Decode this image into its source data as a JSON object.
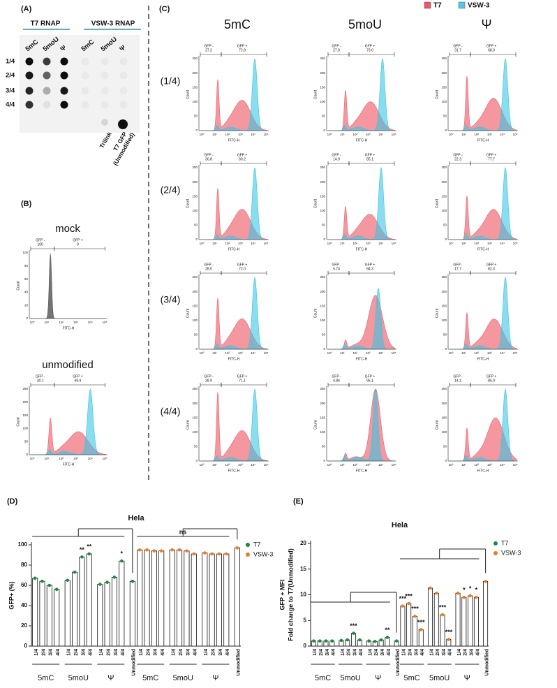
{
  "figure": {
    "A": {
      "label": "(A)",
      "enzymes": [
        "T7 RNAP",
        "VSW-3 RNAP"
      ],
      "modifications": [
        "5mC",
        "5moU",
        "Ψ",
        "5mC",
        "5moU",
        "Ψ"
      ],
      "doses": [
        "1/4",
        "2/4",
        "3/4",
        "4/4"
      ],
      "controls": [
        "Trilink",
        "T7 GFP",
        "(Unmodified)"
      ]
    },
    "B": {
      "label": "(B)",
      "samples": [
        {
          "name": "mock",
          "gfp_neg": "100",
          "gfp_pos": "0"
        },
        {
          "name": "unmodified",
          "gfp_neg": "30.1",
          "gfp_pos": "69.9"
        }
      ]
    },
    "C": {
      "label": "(C)",
      "legend": [
        "T7",
        "VSW-3"
      ],
      "modifications": [
        "5mC",
        "5moU",
        "Ψ"
      ],
      "doses": [
        "(1/4)",
        "(2/4)",
        "(3/4)",
        "(4/4)"
      ],
      "gates": [
        [
          [
            "27.2",
            "72.8"
          ],
          [
            "30.8",
            "69.2"
          ],
          [
            "28.0",
            "72.0"
          ],
          [
            "28.9",
            "71.1"
          ]
        ],
        [
          [
            "27.0",
            "73.0"
          ],
          [
            "14.9",
            "85.1"
          ],
          [
            "5.74",
            "94.3"
          ],
          [
            "4.86",
            "95.1"
          ]
        ],
        [
          [
            "31.7",
            "68.3"
          ],
          [
            "22.3",
            "77.7"
          ],
          [
            "17.7",
            "82.3"
          ],
          [
            "14.1",
            "85.9"
          ]
        ]
      ]
    },
    "flow_axis": {
      "gate_labels": [
        "GFP -",
        "GFP +"
      ],
      "x_label": "FITC-H",
      "y_label": "Count",
      "x_ticks": [
        "10⁰",
        "10¹",
        "10²",
        "10³",
        "10⁴",
        "10⁵"
      ],
      "y_ticks": [
        "0",
        "50",
        "100",
        "150",
        "200",
        "250"
      ],
      "mock_y_ticks": [
        "0",
        "20",
        "40",
        "60",
        "80",
        "100"
      ]
    }
  },
  "chart_data": [
    {
      "type": "bar",
      "label": "(D)",
      "title": "Hela",
      "y_label": [
        "GFP+ (%)"
      ],
      "categories": [
        "1/4",
        "2/4",
        "3/4",
        "4/4",
        "1/4",
        "2/4",
        "3/4",
        "4/4",
        "1/4",
        "2/4",
        "3/4",
        "4/4",
        "Unmodified",
        "1/4",
        "2/4",
        "3/4",
        "4/4",
        "1/4",
        "2/4",
        "3/4",
        "4/4",
        "1/4",
        "2/4",
        "3/4",
        "4/4",
        "Unmodified"
      ],
      "group_labels": [
        "5mC",
        "5moU",
        "Ψ",
        "5mC",
        "5moU",
        "Ψ"
      ],
      "series": [
        {
          "name": "T7",
          "color": "#1f8a3c",
          "values": [
            67,
            64,
            60,
            56,
            65,
            73,
            88,
            91,
            61,
            63,
            68,
            84,
            64,
            null,
            null,
            null,
            null,
            null,
            null,
            null,
            null,
            null,
            null,
            null,
            null,
            null
          ]
        },
        {
          "name": "VSW-3",
          "color": "#f07a1e",
          "values": [
            null,
            null,
            null,
            null,
            null,
            null,
            null,
            null,
            null,
            null,
            null,
            null,
            null,
            95,
            95,
            94,
            94,
            95,
            95,
            94,
            91,
            92,
            91,
            91,
            91,
            97
          ]
        }
      ],
      "ylim": [
        0,
        100
      ],
      "yticks": [
        0,
        20,
        40,
        60,
        80,
        100
      ],
      "legend": "right",
      "annotations": [
        "**",
        "**",
        "*",
        "ns"
      ]
    },
    {
      "type": "bar",
      "label": "(E)",
      "title": "Hela",
      "y_label": [
        "GFP + MFI",
        "Fold change to T7(Unmodified)"
      ],
      "categories": [
        "1/4",
        "2/4",
        "3/4",
        "4/4",
        "1/4",
        "2/4",
        "3/4",
        "4/4",
        "1/4",
        "2/4",
        "3/4",
        "4/4",
        "Unmodified",
        "1/4",
        "2/4",
        "3/4",
        "4/4",
        "1/4",
        "2/4",
        "3/4",
        "4/4",
        "1/4",
        "2/4",
        "3/4",
        "4/4",
        "Unmodified"
      ],
      "group_labels": [
        "5mC",
        "5moU",
        "Ψ",
        "5mC",
        "5moU",
        "Ψ"
      ],
      "series": [
        {
          "name": "T7",
          "color": "#1f8a3c",
          "values": [
            1,
            1,
            1,
            1,
            1.1,
            1.2,
            2.5,
            1.2,
            1,
            0.9,
            1.2,
            1.7,
            1,
            null,
            null,
            null,
            null,
            null,
            null,
            null,
            null,
            null,
            null,
            null,
            null,
            null
          ]
        },
        {
          "name": "VSW-3",
          "color": "#f07a1e",
          "values": [
            null,
            null,
            null,
            null,
            null,
            null,
            null,
            null,
            null,
            null,
            null,
            null,
            null,
            7.8,
            8.3,
            5.8,
            3.2,
            11.3,
            10.3,
            6.1,
            1.3,
            10.3,
            9.5,
            9.8,
            9.5,
            12.6
          ]
        }
      ],
      "ylim": [
        0,
        20
      ],
      "yticks": [
        0,
        5,
        10,
        15,
        20
      ],
      "legend": "right",
      "annotations": [
        "***",
        "**",
        "***",
        "***",
        "***",
        "***",
        "***",
        "***",
        "*",
        "*",
        "*"
      ]
    }
  ]
}
